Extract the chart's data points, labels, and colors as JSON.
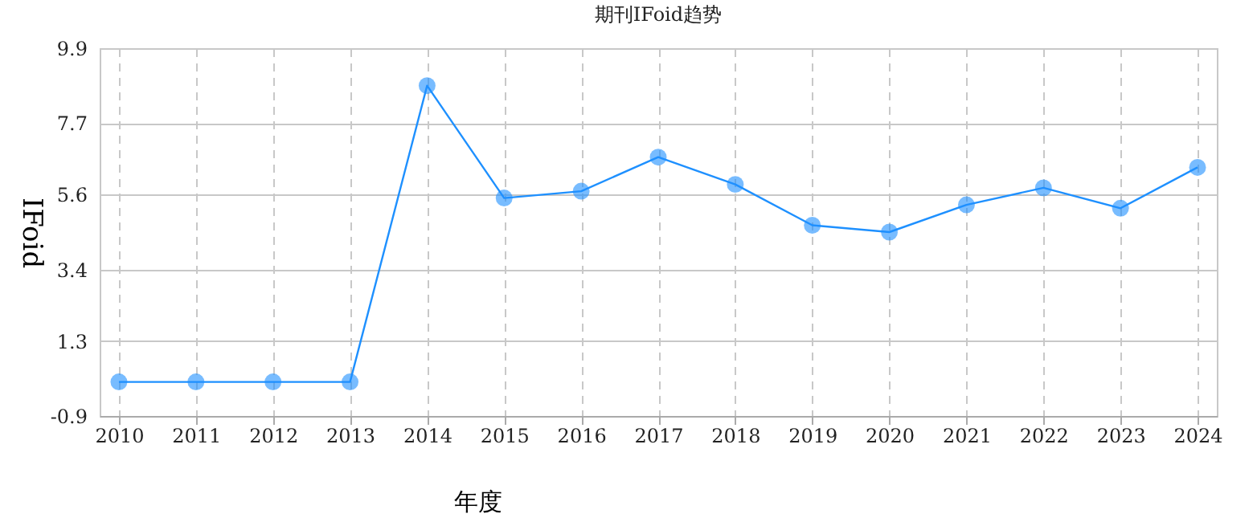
{
  "chart_data": {
    "type": "line",
    "title": "期刊IFoid趋势",
    "xlabel": "年度",
    "ylabel": "IFoid",
    "categories": [
      "2010",
      "2011",
      "2012",
      "2013",
      "2014",
      "2015",
      "2016",
      "2017",
      "2018",
      "2019",
      "2020",
      "2021",
      "2022",
      "2023",
      "2024"
    ],
    "series": [
      {
        "color": "#1e90ff",
        "values": [
          0.1,
          0.1,
          0.1,
          0.1,
          8.8,
          5.5,
          5.7,
          6.7,
          5.9,
          4.7,
          4.5,
          5.3,
          5.8,
          5.2,
          6.4
        ]
      }
    ],
    "ylim": [
      -0.9,
      9.9
    ],
    "yticks": [
      -0.9,
      1.3,
      3.4,
      5.6,
      7.7,
      9.9
    ],
    "grid": true,
    "marker": "circle",
    "line_style": "solid"
  }
}
